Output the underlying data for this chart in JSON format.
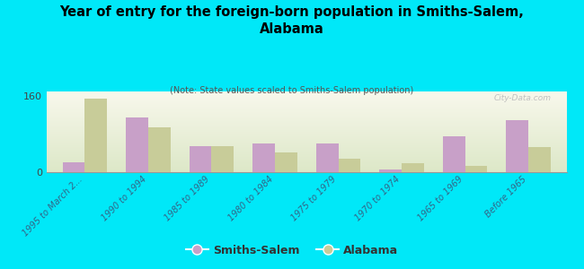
{
  "title": "Year of entry for the foreign-born population in Smiths-Salem,\nAlabama",
  "subtitle": "(Note: State values scaled to Smiths-Salem population)",
  "background_color": "#00e8f8",
  "categories": [
    "1995 to March 2...",
    "1990 to 1994",
    "1985 to 1989",
    "1980 to 1984",
    "1975 to 1979",
    "1970 to 1974",
    "1965 to 1969",
    "Before 1965"
  ],
  "smiths_salem_values": [
    20,
    115,
    55,
    60,
    60,
    5,
    75,
    110
  ],
  "alabama_values": [
    155,
    95,
    55,
    42,
    28,
    18,
    13,
    52
  ],
  "smiths_salem_color": "#c8a0c8",
  "alabama_color": "#c8cc99",
  "ylim": [
    0,
    170
  ],
  "yticks": [
    0,
    160
  ],
  "bar_width": 0.35,
  "legend_smiths_salem": "Smiths-Salem",
  "legend_alabama": "Alabama",
  "watermark": "City-Data.com"
}
